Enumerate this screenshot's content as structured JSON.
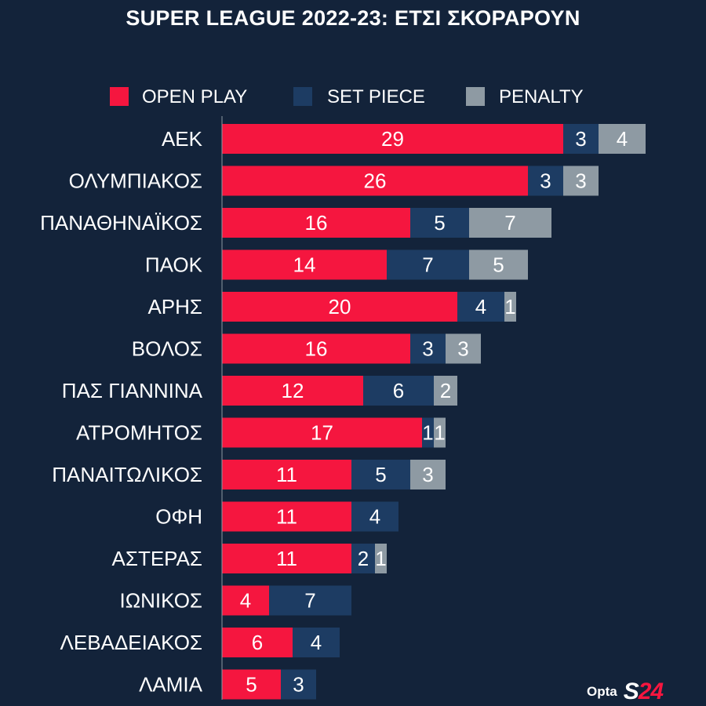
{
  "title": "SUPER LEAGUE 2022-23: ΕΤΣΙ ΣΚΟΡΑΡΟΥΝ",
  "colors": {
    "background": "#13233a",
    "open_play": "#f5163f",
    "set_piece": "#1d3c63",
    "penalty": "#8e9aa3"
  },
  "logos": {
    "opta": "Opta",
    "s24_a": "S",
    "s24_b": "24"
  },
  "chart_data": {
    "type": "bar",
    "orientation": "horizontal",
    "stacked": true,
    "title": "SUPER LEAGUE 2022-23: ΕΤΣΙ ΣΚΟΡΑΡΟΥΝ",
    "legend_position": "top",
    "categories": [
      "ΑΕΚ",
      "ΟΛΥΜΠΙΑΚΟΣ",
      "ΠΑΝΑΘΗΝΑΪΚΟΣ",
      "ΠΑΟΚ",
      "ΑΡΗΣ",
      "ΒΟΛΟΣ",
      "ΠΑΣ ΓΙΑΝΝΙΝΑ",
      "ΑΤΡΟΜΗΤΟΣ",
      "ΠΑΝΑΙΤΩΛΙΚΟΣ",
      "ΟΦΗ",
      "ΑΣΤΕΡΑΣ",
      "ΙΩΝΙΚΟΣ",
      "ΛΕΒΑΔΕΙΑΚΟΣ",
      "ΛΑΜΙΑ"
    ],
    "series": [
      {
        "name": "OPEN PLAY",
        "values": [
          29,
          26,
          16,
          14,
          20,
          16,
          12,
          17,
          11,
          11,
          11,
          4,
          6,
          5
        ]
      },
      {
        "name": "SET PIECE",
        "values": [
          3,
          3,
          5,
          7,
          4,
          3,
          6,
          1,
          5,
          4,
          2,
          7,
          4,
          3
        ]
      },
      {
        "name": "PENALTY",
        "values": [
          4,
          3,
          7,
          5,
          1,
          3,
          2,
          1,
          3,
          0,
          1,
          0,
          0,
          0
        ]
      }
    ]
  }
}
